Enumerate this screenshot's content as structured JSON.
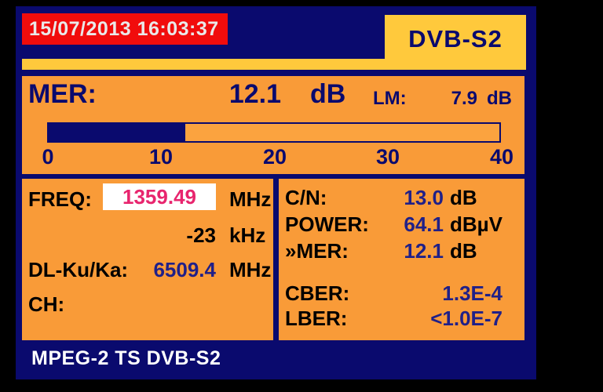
{
  "colors": {
    "screen_navy": "#0a0a6e",
    "panel_orange": "#f99b38",
    "accent_yellow": "#ffc93c",
    "datetime_red": "#f10c0c",
    "freq_pink": "#e8256e",
    "value_blue": "#202088"
  },
  "header": {
    "datetime": "15/07/2013 16:03:37",
    "standard": "DVB-S2"
  },
  "mer_panel": {
    "label": "MER:",
    "value": "12.1",
    "unit": "dB",
    "lm_label": "LM:",
    "lm_value": "7.9",
    "lm_unit": "dB",
    "bar": {
      "min": 0,
      "max": 40,
      "value": 12.1,
      "fill_percent": 30.25,
      "ticks": [
        "0",
        "10",
        "20",
        "30",
        "40"
      ]
    }
  },
  "tuning_panel": {
    "freq_label": "FREQ:",
    "freq_value": "1359.49",
    "freq_unit": "MHz",
    "offset_value": "-23",
    "offset_unit": "kHz",
    "downlink_label": "DL-Ku/Ka:",
    "downlink_value": "6509.4",
    "downlink_unit": "MHz",
    "channel_label": "CH:"
  },
  "measures_panel": {
    "rows": [
      {
        "label": "C/N:",
        "value": "13.0",
        "unit": "dB"
      },
      {
        "label": "POWER:",
        "value": "64.1",
        "unit": "dBµV"
      },
      {
        "label": "»MER:",
        "value": "12.1",
        "unit": "dB"
      },
      {
        "label": "CBER:",
        "value": "1.3E-4",
        "unit": ""
      },
      {
        "label": "LBER:",
        "value": "<1.0E-7",
        "unit": ""
      }
    ]
  },
  "footer": {
    "status": "MPEG-2 TS DVB-S2"
  }
}
